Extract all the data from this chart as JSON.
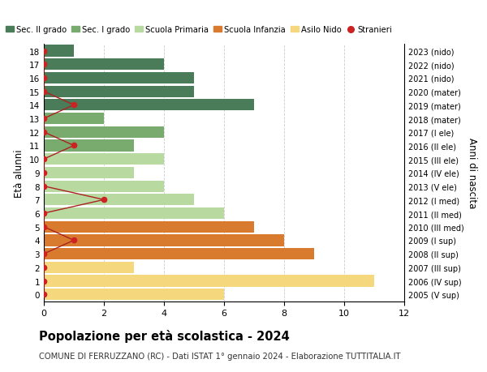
{
  "ages": [
    18,
    17,
    16,
    15,
    14,
    13,
    12,
    11,
    10,
    9,
    8,
    7,
    6,
    5,
    4,
    3,
    2,
    1,
    0
  ],
  "right_labels": [
    "2005 (V sup)",
    "2006 (IV sup)",
    "2007 (III sup)",
    "2008 (II sup)",
    "2009 (I sup)",
    "2010 (III med)",
    "2011 (II med)",
    "2012 (I med)",
    "2013 (V ele)",
    "2014 (IV ele)",
    "2015 (III ele)",
    "2016 (II ele)",
    "2017 (I ele)",
    "2018 (mater)",
    "2019 (mater)",
    "2020 (mater)",
    "2021 (nido)",
    "2022 (nido)",
    "2023 (nido)"
  ],
  "bar_values": [
    1,
    4,
    5,
    5,
    7,
    2,
    4,
    3,
    4,
    3,
    4,
    5,
    6,
    7,
    8,
    9,
    3,
    11,
    6
  ],
  "bar_colors": [
    "#4a7c59",
    "#4a7c59",
    "#4a7c59",
    "#4a7c59",
    "#4a7c59",
    "#7aab6e",
    "#7aab6e",
    "#7aab6e",
    "#b8d9a0",
    "#b8d9a0",
    "#b8d9a0",
    "#b8d9a0",
    "#b8d9a0",
    "#d97b2e",
    "#d97b2e",
    "#d97b2e",
    "#f5d77e",
    "#f5d77e",
    "#f5d77e"
  ],
  "stranieri_x": [
    0,
    0,
    0,
    0,
    1,
    0,
    0,
    1,
    0,
    0,
    0,
    2,
    0,
    0,
    1,
    0,
    0,
    0,
    0
  ],
  "title": "Popolazione per età scolastica - 2024",
  "subtitle": "COMUNE DI FERRUZZANO (RC) - Dati ISTAT 1° gennaio 2024 - Elaborazione TUTTITALIA.IT",
  "ylabel_left": "Età alunni",
  "ylabel_right": "Anni di nascita",
  "xlim": [
    0,
    12
  ],
  "xticks": [
    0,
    2,
    4,
    6,
    8,
    10,
    12
  ],
  "legend_labels": [
    "Sec. II grado",
    "Sec. I grado",
    "Scuola Primaria",
    "Scuola Infanzia",
    "Asilo Nido",
    "Stranieri"
  ],
  "legend_colors": [
    "#4a7c59",
    "#7aab6e",
    "#b8d9a0",
    "#d97b2e",
    "#f5d77e",
    "#cc2222"
  ],
  "bg_color": "#ffffff",
  "grid_color": "#cccccc",
  "stranieri_line_color": "#aa2222",
  "stranieri_dot_color": "#cc2222"
}
